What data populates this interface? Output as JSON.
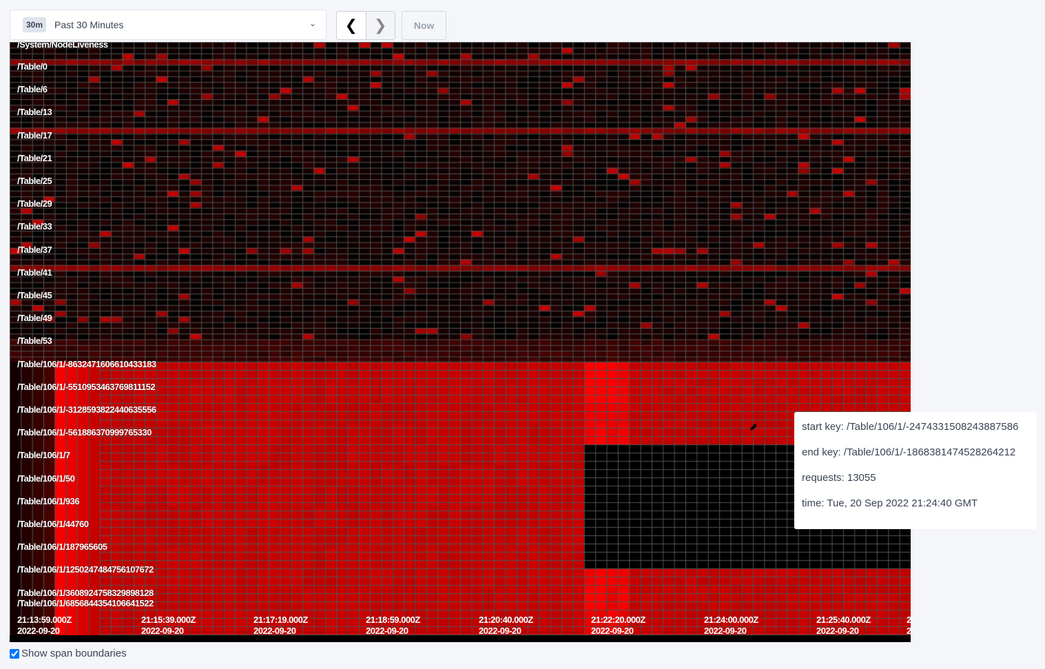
{
  "time_range": {
    "badge": "30m",
    "label": "Past 30 Minutes",
    "dropdown_icon": "chevron-down-icon"
  },
  "nav": {
    "prev_icon": "chevron-left-icon",
    "next_icon": "chevron-right-icon",
    "now_label": "Now"
  },
  "heatmap": {
    "key_labels": [
      "/System/NodeLiveness",
      "/Table/0",
      "/Table/6",
      "/Table/13",
      "/Table/17",
      "/Table/21",
      "/Table/25",
      "/Table/29",
      "/Table/33",
      "/Table/37",
      "/Table/41",
      "/Table/45",
      "/Table/49",
      "/Table/53",
      "/Table/106/1/-8632471606610433183",
      "/Table/106/1/-5510953463769811152",
      "/Table/106/1/-3128593822440635556",
      "/Table/106/1/-561886370999765330",
      "/Table/106/1/7",
      "/Table/106/1/50",
      "/Table/106/1/936",
      "/Table/106/1/44760",
      "/Table/106/1/187965605",
      "/Table/106/1/1250247484756107672",
      "/Table/106/1/3608924758329898128",
      "/Table/106/1/6856844354106641522"
    ],
    "time_labels": [
      {
        "time": "21:13:59.000Z",
        "date": "2022-09-20"
      },
      {
        "time": "21:15:39.000Z",
        "date": "2022-09-20"
      },
      {
        "time": "21:17:19.000Z",
        "date": "2022-09-20"
      },
      {
        "time": "21:18:59.000Z",
        "date": "2022-09-20"
      },
      {
        "time": "21:20:40.000Z",
        "date": "2022-09-20"
      },
      {
        "time": "21:22:20.000Z",
        "date": "2022-09-20"
      },
      {
        "time": "21:24:00.000Z",
        "date": "2022-09-20"
      },
      {
        "time": "21:25:40.000Z",
        "date": "2022-09-20"
      },
      {
        "time": "2",
        "date": "2"
      }
    ],
    "colors": {
      "hot": "#ff0000",
      "warm": "#c00000",
      "cold": "#000000",
      "boundary": "#555555"
    }
  },
  "tooltip": {
    "start_key": "start key: /Table/106/1/-2474331508243887586",
    "end_key": "end key: /Table/106/1/-1868381474528264212",
    "requests": "requests: 13055",
    "time": "time: Tue, 20 Sep 2022 21:24:40 GMT"
  },
  "options": {
    "show_span_boundaries_label": "Show span boundaries",
    "show_span_boundaries": true
  }
}
